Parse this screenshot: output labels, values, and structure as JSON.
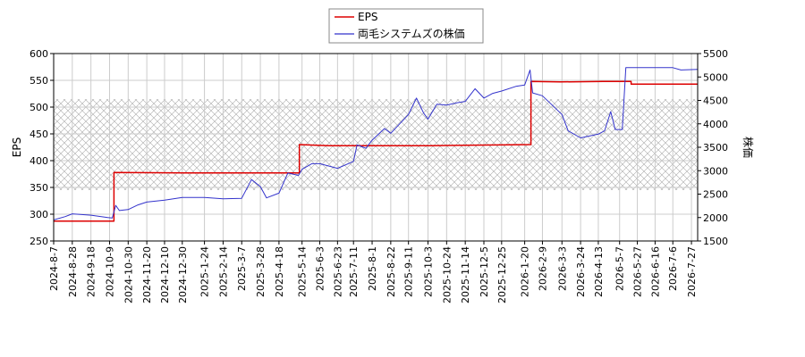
{
  "colors": {
    "eps": "#dd0000",
    "price": "#3333cc",
    "grid": "#cccccc",
    "hatch": "#aaaaaa"
  },
  "chart_data": {
    "type": "line",
    "title": "",
    "left_axis": {
      "label": "EPS",
      "ylim": [
        250,
        600
      ],
      "ticks": [
        250,
        300,
        350,
        400,
        450,
        500,
        550,
        600
      ]
    },
    "right_axis": {
      "label": "株価",
      "ylim": [
        1500,
        5500
      ],
      "ticks": [
        1500,
        2000,
        2500,
        3000,
        3500,
        4000,
        4500,
        5000,
        5500
      ]
    },
    "x_range": [
      "2024-08-07",
      "2026-08-03"
    ],
    "x_ticks": [
      "2024-8-7",
      "2024-8-28",
      "2024-9-18",
      "2024-10-9",
      "2024-10-30",
      "2024-11-20",
      "2024-12-10",
      "2024-12-30",
      "2025-1-24",
      "2025-2-14",
      "2025-3-7",
      "2025-3-28",
      "2025-4-18",
      "2025-5-14",
      "2025-6-3",
      "2025-6-23",
      "2025-7-11",
      "2025-8-1",
      "2025-8-22",
      "2025-9-11",
      "2025-10-3",
      "2025-10-24",
      "2025-11-14",
      "2025-12-5",
      "2025-12-25",
      "2026-1-20",
      "2026-2-9",
      "2026-3-3",
      "2026-3-24",
      "2026-4-13",
      "2026-5-7",
      "2026-5-27",
      "2026-6-16",
      "2026-7-6",
      "2026-7-27"
    ],
    "grid": true,
    "legend": {
      "placement": "top-center",
      "entries": [
        "EPS",
        "両毛システムズの株価"
      ]
    },
    "hatch_band": {
      "axis": "left",
      "from": 345,
      "to": 515
    },
    "series": [
      {
        "name": "EPS",
        "axis": "left",
        "step": true,
        "points": [
          [
            "2024-08-07",
            287
          ],
          [
            "2024-10-14",
            287
          ],
          [
            "2024-10-14",
            378
          ],
          [
            "2025-01-05",
            377
          ],
          [
            "2025-05-11",
            377
          ],
          [
            "2025-05-11",
            430
          ],
          [
            "2025-06-13",
            428
          ],
          [
            "2025-08-09",
            428
          ],
          [
            "2025-10-06",
            428
          ],
          [
            "2026-01-27",
            430
          ],
          [
            "2026-01-27",
            548
          ],
          [
            "2026-03-01",
            547
          ],
          [
            "2026-04-18",
            548
          ],
          [
            "2026-05-20",
            548
          ],
          [
            "2026-05-20",
            543
          ],
          [
            "2026-08-03",
            543
          ]
        ]
      },
      {
        "name": "両毛システムズの株価",
        "axis": "right",
        "points": [
          [
            "2024-08-07",
            1950
          ],
          [
            "2024-08-20",
            2020
          ],
          [
            "2024-08-28",
            2080
          ],
          [
            "2024-09-18",
            2050
          ],
          [
            "2024-10-07",
            2000
          ],
          [
            "2024-10-12",
            1990
          ],
          [
            "2024-10-16",
            2260
          ],
          [
            "2024-10-20",
            2150
          ],
          [
            "2024-10-30",
            2170
          ],
          [
            "2024-11-10",
            2270
          ],
          [
            "2024-11-20",
            2330
          ],
          [
            "2024-12-10",
            2370
          ],
          [
            "2024-12-30",
            2430
          ],
          [
            "2025-01-24",
            2430
          ],
          [
            "2025-02-14",
            2400
          ],
          [
            "2025-03-07",
            2410
          ],
          [
            "2025-03-18",
            2810
          ],
          [
            "2025-03-28",
            2660
          ],
          [
            "2025-04-04",
            2420
          ],
          [
            "2025-04-18",
            2520
          ],
          [
            "2025-04-28",
            2950
          ],
          [
            "2025-05-10",
            2900
          ],
          [
            "2025-05-14",
            3030
          ],
          [
            "2025-05-25",
            3150
          ],
          [
            "2025-06-03",
            3150
          ],
          [
            "2025-06-23",
            3050
          ],
          [
            "2025-07-11",
            3200
          ],
          [
            "2025-07-15",
            3550
          ],
          [
            "2025-07-25",
            3480
          ],
          [
            "2025-08-01",
            3650
          ],
          [
            "2025-08-15",
            3900
          ],
          [
            "2025-08-22",
            3800
          ],
          [
            "2025-09-01",
            4000
          ],
          [
            "2025-09-11",
            4200
          ],
          [
            "2025-09-20",
            4550
          ],
          [
            "2025-09-28",
            4230
          ],
          [
            "2025-10-03",
            4100
          ],
          [
            "2025-10-13",
            4420
          ],
          [
            "2025-10-24",
            4400
          ],
          [
            "2025-11-05",
            4450
          ],
          [
            "2025-11-14",
            4480
          ],
          [
            "2025-11-25",
            4750
          ],
          [
            "2025-12-05",
            4550
          ],
          [
            "2025-12-15",
            4650
          ],
          [
            "2025-12-25",
            4700
          ],
          [
            "2026-01-10",
            4800
          ],
          [
            "2026-01-20",
            4830
          ],
          [
            "2026-01-26",
            5150
          ],
          [
            "2026-01-29",
            4660
          ],
          [
            "2026-02-09",
            4600
          ],
          [
            "2026-02-20",
            4400
          ],
          [
            "2026-03-03",
            4200
          ],
          [
            "2026-03-10",
            3850
          ],
          [
            "2026-03-24",
            3700
          ],
          [
            "2026-04-13",
            3780
          ],
          [
            "2026-04-20",
            3850
          ],
          [
            "2026-04-27",
            4260
          ],
          [
            "2026-05-02",
            3880
          ],
          [
            "2026-05-10",
            3880
          ],
          [
            "2026-05-14",
            5200
          ],
          [
            "2026-05-27",
            5200
          ],
          [
            "2026-06-16",
            5200
          ],
          [
            "2026-07-06",
            5200
          ],
          [
            "2026-07-15",
            5150
          ],
          [
            "2026-08-03",
            5160
          ]
        ]
      }
    ]
  }
}
